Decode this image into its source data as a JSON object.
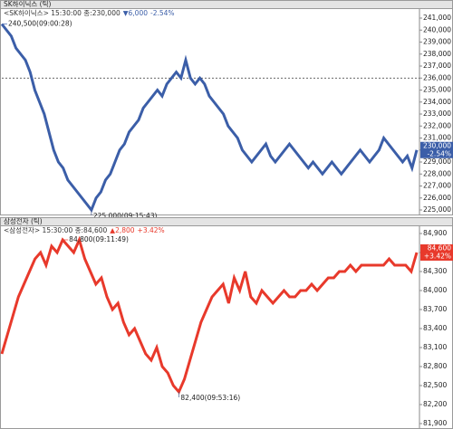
{
  "chart_data": [
    {
      "type": "line",
      "title": "SK하이닉스 (틱)",
      "info": [
        "<SK하이닉스> 15:30:00 종:230,000",
        "▼6,000",
        "-2.54%"
      ],
      "color": "#3b5ea8",
      "values": [
        240500,
        240000,
        239500,
        238500,
        238000,
        237500,
        236500,
        235000,
        234000,
        233000,
        231500,
        230000,
        229000,
        228500,
        227500,
        227000,
        226500,
        226000,
        225500,
        225000,
        226000,
        226500,
        227500,
        228000,
        229000,
        230000,
        230500,
        231500,
        232000,
        232500,
        233500,
        234000,
        234500,
        235000,
        234500,
        235500,
        236000,
        236500,
        236000,
        237500,
        236000,
        235500,
        236000,
        235500,
        234500,
        234000,
        233500,
        233000,
        232000,
        231500,
        231000,
        230000,
        229500,
        229000,
        229500,
        230000,
        230500,
        229500,
        229000,
        229500,
        230000,
        230500,
        230000,
        229500,
        229000,
        228500,
        229000,
        228500,
        228000,
        228500,
        229000,
        228500,
        228000,
        228500,
        229000,
        229500,
        230000,
        229500,
        229000,
        229500,
        230000,
        231000,
        230500,
        230000,
        229500,
        229000,
        229500,
        228500,
        230000
      ],
      "ylim": [
        224600,
        241400
      ],
      "yticks": [
        {
          "value": 225000,
          "label": "225,000"
        },
        {
          "value": 226000,
          "label": "226,000"
        },
        {
          "value": 227000,
          "label": "227,000"
        },
        {
          "value": 228000,
          "label": "228,000"
        },
        {
          "value": 229000,
          "label": "229,000"
        },
        {
          "value": 230000,
          "label": "230,000"
        },
        {
          "value": 231000,
          "label": "231,000"
        },
        {
          "value": 232000,
          "label": "232,000"
        },
        {
          "value": 233000,
          "label": "233,000"
        },
        {
          "value": 234000,
          "label": "234,000"
        },
        {
          "value": 235000,
          "label": "235,000"
        },
        {
          "value": 236000,
          "label": "236,000"
        },
        {
          "value": 237000,
          "label": "237,000"
        },
        {
          "value": 238000,
          "label": "238,000"
        },
        {
          "value": 239000,
          "label": "239,000"
        },
        {
          "value": 240000,
          "label": "240,000"
        },
        {
          "value": 241000,
          "label": "241,000"
        }
      ],
      "ref_line": 236000,
      "max_label": "240,500(09:00:28)",
      "min_label": "225,000(09:15:43)",
      "last_price_label": "230,000",
      "last_change_label": "-2.54%"
    },
    {
      "type": "line",
      "title": "삼성전자 (틱)",
      "info": [
        "<삼성전자> 15:30:00 종:84,600",
        "▲2,800",
        "+3.42%"
      ],
      "color": "#e8392b",
      "values": [
        83000,
        83300,
        83600,
        83900,
        84100,
        84300,
        84500,
        84600,
        84400,
        84700,
        84600,
        84800,
        84700,
        84600,
        84800,
        84500,
        84300,
        84100,
        84200,
        83900,
        83700,
        83800,
        83500,
        83300,
        83400,
        83200,
        83000,
        82900,
        83100,
        82800,
        82700,
        82500,
        82400,
        82600,
        82900,
        83200,
        83500,
        83700,
        83900,
        84000,
        84100,
        83800,
        84200,
        84000,
        84300,
        83900,
        83800,
        84000,
        83900,
        83800,
        83900,
        84000,
        83900,
        83900,
        84000,
        84000,
        84100,
        84000,
        84100,
        84200,
        84200,
        84300,
        84300,
        84400,
        84300,
        84400,
        84400,
        84400,
        84400,
        84400,
        84500,
        84400,
        84400,
        84400,
        84300,
        84600
      ],
      "ylim": [
        81850,
        84950
      ],
      "yticks": [
        {
          "value": 81900,
          "label": "81,900"
        },
        {
          "value": 82200,
          "label": "82,200"
        },
        {
          "value": 82500,
          "label": "82,500"
        },
        {
          "value": 82800,
          "label": "82,800"
        },
        {
          "value": 83100,
          "label": "83,100"
        },
        {
          "value": 83400,
          "label": "83,400"
        },
        {
          "value": 83700,
          "label": "83,700"
        },
        {
          "value": 84000,
          "label": "84,000"
        },
        {
          "value": 84300,
          "label": "84,300"
        },
        {
          "value": 84600,
          "label": "84,600"
        },
        {
          "value": 84900,
          "label": "84,900"
        }
      ],
      "max_label": "84,800(09:11:49)",
      "min_label": "82,400(09:53:16)",
      "last_price_label": "84,600",
      "last_change_label": "+3.42%"
    }
  ]
}
